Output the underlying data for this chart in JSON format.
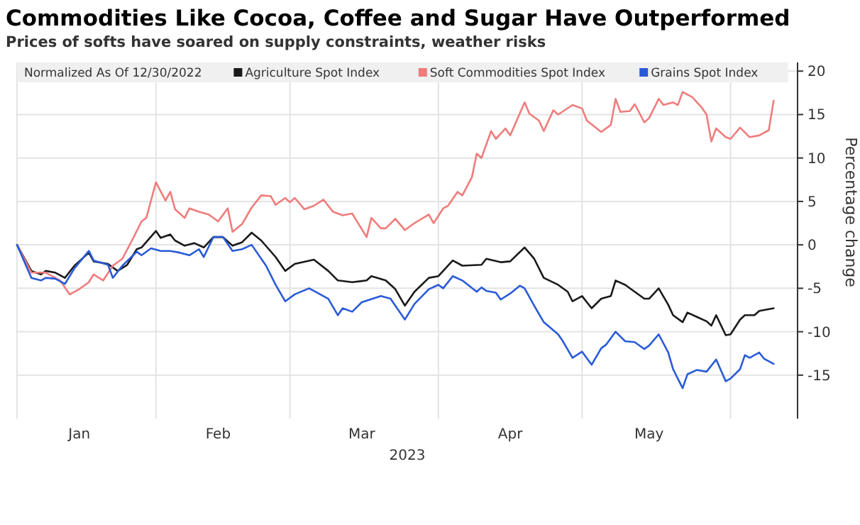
{
  "chart_data": {
    "type": "line",
    "title": "Commodities Like Cocoa, Coffee and Sugar Have Outperformed",
    "subtitle": "Prices of softs have soared on supply constraints, weather risks",
    "xlabel": "2023",
    "ylabel": "Percentage change",
    "legend_title": "Normalized As Of 12/30/2022",
    "legend": "top",
    "grid": true,
    "line_style": "solid",
    "marker": "none",
    "xlim": [
      "2023-01-03",
      "2023-06-15"
    ],
    "xticks": [
      {
        "value": "2023-02-01",
        "label": null
      },
      {
        "value": "2023-03-01",
        "label": null
      },
      {
        "value": "2023-04-01",
        "label": null
      },
      {
        "value": "2023-05-01",
        "label": null
      },
      {
        "value": "2023-06-01",
        "label": null
      },
      {
        "value": "2023-01-16",
        "label": "Jan"
      },
      {
        "value": "2023-02-14",
        "label": "Feb"
      },
      {
        "value": "2023-03-16",
        "label": "Mar"
      },
      {
        "value": "2023-04-16",
        "label": "Apr"
      },
      {
        "value": "2023-05-15",
        "label": "May"
      }
    ],
    "ylim": [
      -20,
      21
    ],
    "yticks": [
      -15,
      -10,
      -5,
      0,
      5,
      10,
      15,
      20
    ],
    "series": [
      {
        "name": "Agriculture Spot Index",
        "color": "#1a1a1a",
        "x": [
          "2023-01-03",
          "2023-01-06",
          "2023-01-08",
          "2023-01-09",
          "2023-01-11",
          "2023-01-13",
          "2023-01-15",
          "2023-01-18",
          "2023-01-19",
          "2023-01-22",
          "2023-01-24",
          "2023-01-26",
          "2023-01-28",
          "2023-01-29",
          "2023-02-01",
          "2023-02-02",
          "2023-02-04",
          "2023-02-05",
          "2023-02-07",
          "2023-02-09",
          "2023-02-11",
          "2023-02-13",
          "2023-02-15",
          "2023-02-17",
          "2023-02-19",
          "2023-02-21",
          "2023-02-23",
          "2023-02-26",
          "2023-02-28",
          "2023-03-02",
          "2023-03-06",
          "2023-03-09",
          "2023-03-11",
          "2023-03-14",
          "2023-03-17",
          "2023-03-18",
          "2023-03-21",
          "2023-03-23",
          "2023-03-25",
          "2023-03-27",
          "2023-03-30",
          "2023-04-01",
          "2023-04-04",
          "2023-04-06",
          "2023-04-10",
          "2023-04-11",
          "2023-04-14",
          "2023-04-16",
          "2023-04-19",
          "2023-04-21",
          "2023-04-23",
          "2023-04-26",
          "2023-04-28",
          "2023-04-29",
          "2023-05-01",
          "2023-05-03",
          "2023-05-05",
          "2023-05-07",
          "2023-05-08",
          "2023-05-10",
          "2023-05-12",
          "2023-05-14",
          "2023-05-15",
          "2023-05-17",
          "2023-05-19",
          "2023-05-20",
          "2023-05-22",
          "2023-05-23",
          "2023-05-25",
          "2023-05-27",
          "2023-05-28",
          "2023-05-29",
          "2023-05-31",
          "2023-06-01",
          "2023-06-03",
          "2023-06-04",
          "2023-06-06",
          "2023-06-07",
          "2023-06-10"
        ],
        "values": [
          0,
          -3.0,
          -3.4,
          -3.0,
          -3.2,
          -3.8,
          -2.4,
          -0.9,
          -1.9,
          -2.2,
          -3.0,
          -2.3,
          -0.5,
          -0.3,
          1.6,
          0.8,
          1.2,
          0.5,
          -0.1,
          0.2,
          -0.3,
          0.9,
          0.9,
          -0.1,
          0.3,
          1.4,
          0.5,
          -1.4,
          -3.0,
          -2.2,
          -1.7,
          -3.0,
          -4.1,
          -4.3,
          -4.1,
          -3.6,
          -4.1,
          -5.1,
          -7.0,
          -5.4,
          -3.8,
          -3.6,
          -1.8,
          -2.4,
          -2.3,
          -1.6,
          -2.0,
          -1.9,
          -0.3,
          -1.6,
          -3.8,
          -4.6,
          -5.4,
          -6.5,
          -5.9,
          -7.3,
          -6.2,
          -5.9,
          -4.1,
          -4.6,
          -5.4,
          -6.2,
          -6.2,
          -5.0,
          -6.9,
          -8.1,
          -8.9,
          -7.8,
          -8.3,
          -8.8,
          -9.3,
          -8.1,
          -10.4,
          -10.3,
          -8.6,
          -8.1,
          -8.1,
          -7.6,
          -7.3
        ]
      },
      {
        "name": "Soft Commodities Spot Index",
        "color": "#f07c7c",
        "x": [
          "2023-01-03",
          "2023-01-06",
          "2023-01-09",
          "2023-01-12",
          "2023-01-14",
          "2023-01-16",
          "2023-01-18",
          "2023-01-19",
          "2023-01-21",
          "2023-01-23",
          "2023-01-25",
          "2023-01-27",
          "2023-01-29",
          "2023-01-30",
          "2023-02-01",
          "2023-02-03",
          "2023-02-04",
          "2023-02-05",
          "2023-02-07",
          "2023-02-08",
          "2023-02-10",
          "2023-02-12",
          "2023-02-14",
          "2023-02-16",
          "2023-02-17",
          "2023-02-19",
          "2023-02-21",
          "2023-02-23",
          "2023-02-25",
          "2023-02-26",
          "2023-02-28",
          "2023-03-01",
          "2023-03-02",
          "2023-03-04",
          "2023-03-06",
          "2023-03-08",
          "2023-03-10",
          "2023-03-12",
          "2023-03-14",
          "2023-03-15",
          "2023-03-17",
          "2023-03-18",
          "2023-03-20",
          "2023-03-21",
          "2023-03-23",
          "2023-03-25",
          "2023-03-27",
          "2023-03-30",
          "2023-03-31",
          "2023-04-02",
          "2023-04-03",
          "2023-04-05",
          "2023-04-06",
          "2023-04-08",
          "2023-04-09",
          "2023-04-10",
          "2023-04-12",
          "2023-04-13",
          "2023-04-15",
          "2023-04-16",
          "2023-04-19",
          "2023-04-20",
          "2023-04-22",
          "2023-04-23",
          "2023-04-25",
          "2023-04-26",
          "2023-04-29",
          "2023-05-01",
          "2023-05-02",
          "2023-05-05",
          "2023-05-07",
          "2023-05-08",
          "2023-05-09",
          "2023-05-11",
          "2023-05-12",
          "2023-05-14",
          "2023-05-15",
          "2023-05-17",
          "2023-05-18",
          "2023-05-20",
          "2023-05-21",
          "2023-05-22",
          "2023-05-24",
          "2023-05-26",
          "2023-05-27",
          "2023-05-28",
          "2023-05-29",
          "2023-05-31",
          "2023-06-01",
          "2023-06-03",
          "2023-06-05",
          "2023-06-07",
          "2023-06-09",
          "2023-06-10"
        ],
        "values": [
          0,
          -3.2,
          -3.2,
          -4.1,
          -5.7,
          -5.1,
          -4.3,
          -3.4,
          -4.1,
          -2.4,
          -1.6,
          0.5,
          2.7,
          3.1,
          7.2,
          5.1,
          6.1,
          4.1,
          3.1,
          4.2,
          3.8,
          3.5,
          2.7,
          4.2,
          1.5,
          2.4,
          4.3,
          5.7,
          5.6,
          4.6,
          5.4,
          4.9,
          5.4,
          4.1,
          4.5,
          5.2,
          3.8,
          3.4,
          3.6,
          2.7,
          0.9,
          3.1,
          1.9,
          1.9,
          3.0,
          1.7,
          2.5,
          3.5,
          2.5,
          4.2,
          4.5,
          6.1,
          5.7,
          7.8,
          10.5,
          10.0,
          13.1,
          12.2,
          13.4,
          12.6,
          16.4,
          15.1,
          14.3,
          13.1,
          15.5,
          15.0,
          16.1,
          15.7,
          14.3,
          13.0,
          13.8,
          16.8,
          15.3,
          15.4,
          16.2,
          14.1,
          14.6,
          16.8,
          16.1,
          16.4,
          16.1,
          17.6,
          17.0,
          15.8,
          15.0,
          11.9,
          13.4,
          12.4,
          12.2,
          13.5,
          12.4,
          12.6,
          13.2,
          16.6
        ]
      },
      {
        "name": "Grains Spot Index",
        "color": "#2a5bd7",
        "x": [
          "2023-01-03",
          "2023-01-06",
          "2023-01-08",
          "2023-01-09",
          "2023-01-11",
          "2023-01-13",
          "2023-01-15",
          "2023-01-18",
          "2023-01-19",
          "2023-01-22",
          "2023-01-23",
          "2023-01-25",
          "2023-01-28",
          "2023-01-29",
          "2023-01-31",
          "2023-02-02",
          "2023-02-04",
          "2023-02-06",
          "2023-02-08",
          "2023-02-10",
          "2023-02-11",
          "2023-02-13",
          "2023-02-15",
          "2023-02-17",
          "2023-02-19",
          "2023-02-21",
          "2023-02-24",
          "2023-02-26",
          "2023-02-28",
          "2023-03-02",
          "2023-03-05",
          "2023-03-09",
          "2023-03-11",
          "2023-03-12",
          "2023-03-14",
          "2023-03-16",
          "2023-03-20",
          "2023-03-22",
          "2023-03-25",
          "2023-03-27",
          "2023-03-30",
          "2023-04-01",
          "2023-04-02",
          "2023-04-04",
          "2023-04-06",
          "2023-04-09",
          "2023-04-10",
          "2023-04-11",
          "2023-04-13",
          "2023-04-14",
          "2023-04-16",
          "2023-04-18",
          "2023-04-19",
          "2023-04-21",
          "2023-04-23",
          "2023-04-26",
          "2023-04-27",
          "2023-04-29",
          "2023-05-01",
          "2023-05-03",
          "2023-05-05",
          "2023-05-06",
          "2023-05-08",
          "2023-05-10",
          "2023-05-12",
          "2023-05-14",
          "2023-05-15",
          "2023-05-17",
          "2023-05-19",
          "2023-05-20",
          "2023-05-22",
          "2023-05-23",
          "2023-05-25",
          "2023-05-27",
          "2023-05-29",
          "2023-05-31",
          "2023-06-01",
          "2023-06-03",
          "2023-06-04",
          "2023-06-05",
          "2023-06-07",
          "2023-06-08",
          "2023-06-10"
        ],
        "values": [
          0,
          -3.8,
          -4.1,
          -3.8,
          -3.9,
          -4.5,
          -2.7,
          -0.7,
          -1.8,
          -2.3,
          -3.8,
          -2.4,
          -0.8,
          -1.2,
          -0.4,
          -0.7,
          -0.7,
          -0.9,
          -1.2,
          -0.5,
          -1.4,
          0.9,
          0.9,
          -0.7,
          -0.5,
          0,
          -2.4,
          -4.6,
          -6.5,
          -5.7,
          -5.0,
          -6.2,
          -8.1,
          -7.3,
          -7.7,
          -6.6,
          -5.9,
          -6.2,
          -8.6,
          -6.8,
          -5.1,
          -4.6,
          -5.0,
          -3.6,
          -4.1,
          -5.4,
          -4.9,
          -5.3,
          -5.5,
          -6.3,
          -5.6,
          -4.7,
          -5.0,
          -7.0,
          -8.9,
          -10.3,
          -11.1,
          -13.0,
          -12.3,
          -13.8,
          -11.9,
          -11.5,
          -10.0,
          -11.1,
          -11.2,
          -12.0,
          -11.6,
          -10.3,
          -12.4,
          -14.3,
          -16.5,
          -14.9,
          -14.4,
          -14.6,
          -13.2,
          -15.7,
          -15.4,
          -14.3,
          -12.7,
          -13.0,
          -12.4,
          -13.1,
          -13.7
        ]
      }
    ]
  }
}
